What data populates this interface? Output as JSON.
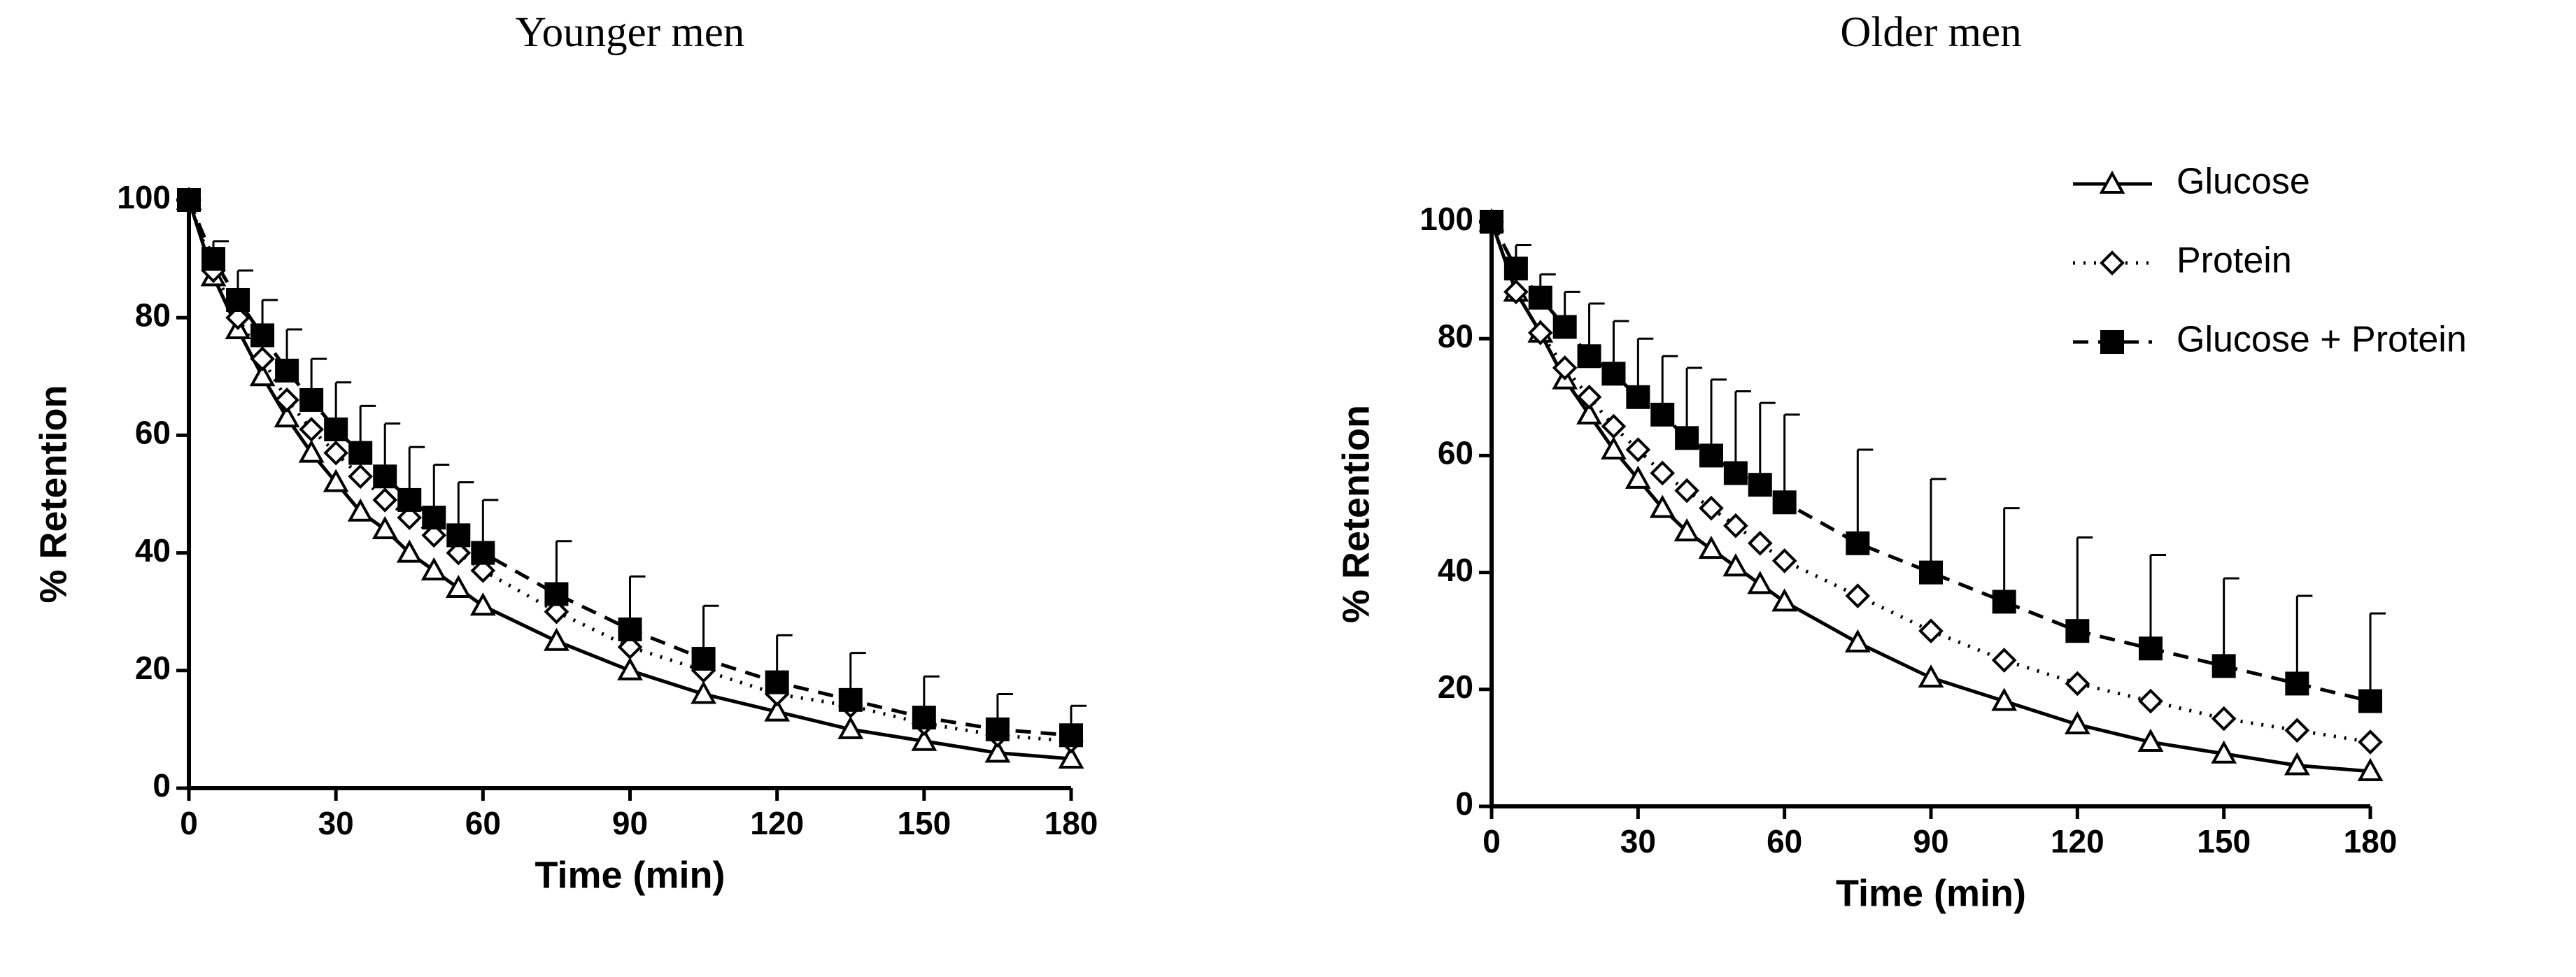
{
  "chart_data": [
    {
      "type": "line",
      "title": "Younger men",
      "x_label": "Time (min)",
      "y_label": "% Retention",
      "x": [
        0,
        5,
        10,
        15,
        20,
        25,
        30,
        35,
        40,
        45,
        50,
        55,
        60,
        75,
        90,
        105,
        120,
        135,
        150,
        165,
        180
      ],
      "xlim": [
        0,
        180
      ],
      "xticks": [
        0,
        30,
        60,
        90,
        120,
        150,
        180
      ],
      "ylim": [
        0,
        100
      ],
      "yticks": [
        0,
        20,
        40,
        60,
        80,
        100
      ],
      "grid": false,
      "series": [
        {
          "name": "Glucose",
          "color": "#000000",
          "marker": "triangle",
          "dash": "solid",
          "values": [
            100,
            87,
            78,
            70,
            63,
            57,
            52,
            47,
            44,
            40,
            37,
            34,
            31,
            25,
            20,
            16,
            13,
            10,
            8,
            6,
            5
          ]
        },
        {
          "name": "Protein",
          "color": "#000000",
          "marker": "diamond",
          "dash": "dotted",
          "values": [
            100,
            88,
            80,
            73,
            66,
            61,
            57,
            53,
            49,
            46,
            43,
            40,
            37,
            30,
            24,
            20,
            16,
            14,
            11,
            9,
            8
          ]
        },
        {
          "name": "Glucose + Protein",
          "color": "#000000",
          "marker": "square",
          "dash": "dashed",
          "values": [
            100,
            90,
            83,
            77,
            71,
            66,
            61,
            57,
            53,
            49,
            46,
            43,
            40,
            33,
            27,
            22,
            18,
            15,
            12,
            10,
            9
          ],
          "errors": [
            null,
            3,
            5,
            6,
            7,
            7,
            8,
            8,
            9,
            9,
            9,
            9,
            9,
            9,
            9,
            9,
            8,
            8,
            7,
            6,
            5
          ]
        }
      ]
    },
    {
      "type": "line",
      "title": "Older men",
      "x_label": "Time (min)",
      "y_label": "% Retention",
      "x": [
        0,
        5,
        10,
        15,
        20,
        25,
        30,
        35,
        40,
        45,
        50,
        55,
        60,
        75,
        90,
        105,
        120,
        135,
        150,
        165,
        180
      ],
      "xlim": [
        0,
        180
      ],
      "xticks": [
        0,
        30,
        60,
        90,
        120,
        150,
        180
      ],
      "ylim": [
        0,
        100
      ],
      "yticks": [
        0,
        20,
        40,
        60,
        80,
        100
      ],
      "grid": false,
      "legend": "upper right",
      "series": [
        {
          "name": "Glucose",
          "color": "#000000",
          "marker": "triangle",
          "dash": "solid",
          "values": [
            100,
            88,
            81,
            73,
            67,
            61,
            56,
            51,
            47,
            44,
            41,
            38,
            35,
            28,
            22,
            18,
            14,
            11,
            9,
            7,
            6
          ]
        },
        {
          "name": "Protein",
          "color": "#000000",
          "marker": "diamond",
          "dash": "dotted",
          "values": [
            100,
            88,
            81,
            75,
            70,
            65,
            61,
            57,
            54,
            51,
            48,
            45,
            42,
            36,
            30,
            25,
            21,
            18,
            15,
            13,
            11
          ]
        },
        {
          "name": "Glucose + Protein",
          "color": "#000000",
          "marker": "square",
          "dash": "dashed",
          "values": [
            100,
            92,
            87,
            82,
            77,
            74,
            70,
            67,
            63,
            60,
            57,
            55,
            52,
            45,
            40,
            35,
            30,
            27,
            24,
            21,
            18
          ],
          "errors": [
            null,
            4,
            4,
            6,
            9,
            9,
            10,
            10,
            12,
            13,
            14,
            14,
            15,
            16,
            16,
            16,
            16,
            16,
            15,
            15,
            15
          ]
        }
      ]
    }
  ]
}
